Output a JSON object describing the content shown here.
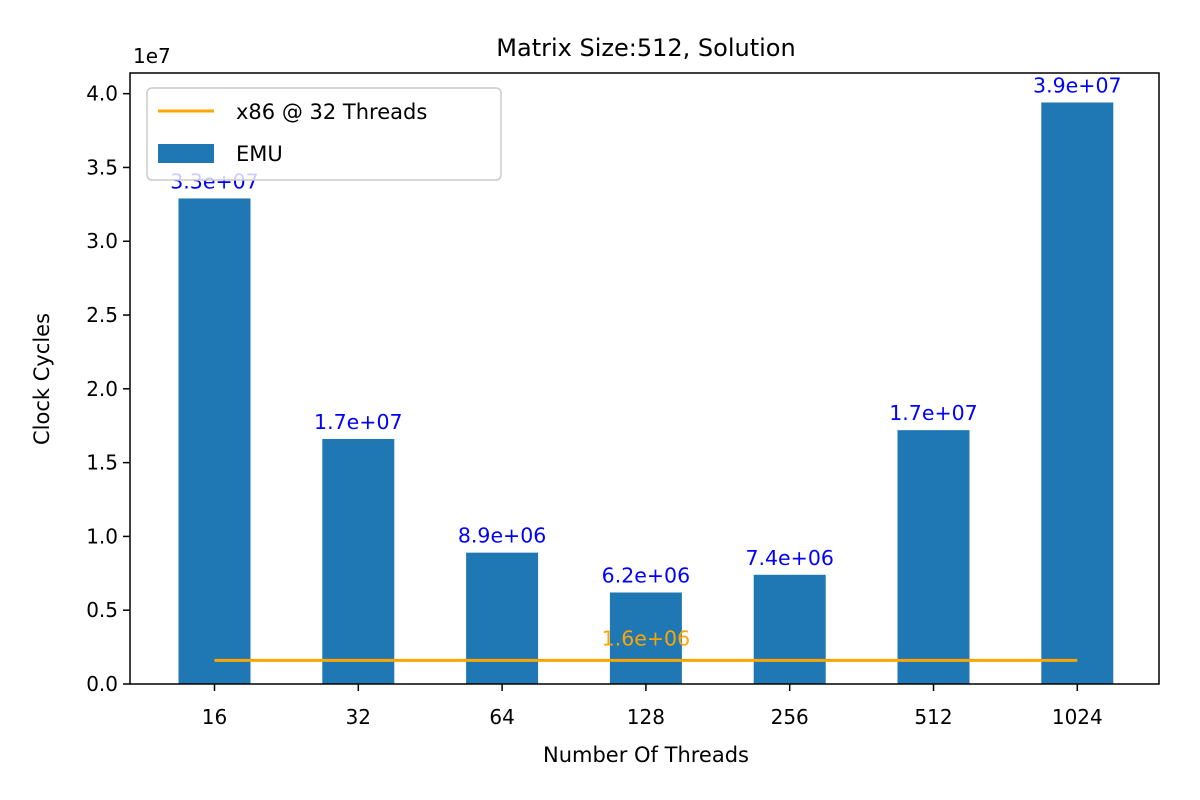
{
  "chart_data": {
    "type": "bar",
    "title": "Matrix Size:512, Solution",
    "xlabel": "Number Of Threads",
    "ylabel": "Clock Cycles",
    "y_scale_label": "1e7",
    "categories": [
      "16",
      "32",
      "64",
      "128",
      "256",
      "512",
      "1024"
    ],
    "series": [
      {
        "name": "EMU",
        "kind": "bar",
        "color": "#1f77b4",
        "values": [
          32900000,
          16600000,
          8900000,
          6200000,
          7400000,
          17200000,
          39400000
        ],
        "labels": [
          "3.3e+07",
          "1.7e+07",
          "8.9e+06",
          "6.2e+06",
          "7.4e+06",
          "1.7e+07",
          "3.9e+07"
        ],
        "label_color": "#0000ff"
      },
      {
        "name": "x86 @ 32 Threads",
        "kind": "hline",
        "color": "#ffa500",
        "value": 1600000,
        "label": "1.6e+06"
      }
    ],
    "ylim": [
      0,
      41400000
    ],
    "yticks": [
      0,
      5000000,
      10000000,
      15000000,
      20000000,
      25000000,
      30000000,
      35000000,
      40000000
    ],
    "ytick_labels": [
      "0.0",
      "0.5",
      "1.0",
      "1.5",
      "2.0",
      "2.5",
      "3.0",
      "3.5",
      "4.0"
    ],
    "legend_position": "upper-left",
    "grid": false
  }
}
